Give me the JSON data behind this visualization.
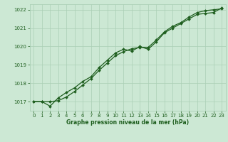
{
  "background_color": "#cce8d4",
  "grid_color": "#aacfb5",
  "line_color": "#1e5e1e",
  "text_color": "#1e5e1e",
  "xlabel": "Graphe pression niveau de la mer (hPa)",
  "ylim": [
    1016.5,
    1022.3
  ],
  "xlim": [
    -0.5,
    23.5
  ],
  "yticks": [
    1017,
    1018,
    1019,
    1020,
    1021,
    1022
  ],
  "xticks": [
    0,
    1,
    2,
    3,
    4,
    5,
    6,
    7,
    8,
    9,
    10,
    11,
    12,
    13,
    14,
    15,
    16,
    17,
    18,
    19,
    20,
    21,
    22,
    23
  ],
  "line1_x": [
    0,
    1,
    2,
    3,
    4,
    5,
    6,
    7,
    8,
    9,
    10,
    11,
    12,
    13,
    14,
    15,
    16,
    17,
    18,
    19,
    20,
    21,
    22,
    23
  ],
  "line1_y": [
    1017.0,
    1017.0,
    1016.75,
    1017.2,
    1017.5,
    1017.75,
    1018.1,
    1018.35,
    1018.85,
    1019.25,
    1019.65,
    1019.85,
    1019.75,
    1020.0,
    1019.85,
    1020.25,
    1020.75,
    1021.0,
    1021.25,
    1021.5,
    1021.75,
    1021.8,
    1021.85,
    1022.1
  ],
  "line2_x": [
    0,
    1,
    2,
    3,
    4,
    5,
    6,
    7,
    8,
    9,
    10,
    11,
    12,
    13,
    14,
    15,
    16,
    17,
    18,
    19,
    20,
    21,
    22,
    23
  ],
  "line2_y": [
    1017.0,
    1017.0,
    1017.0,
    1017.05,
    1017.25,
    1017.55,
    1017.9,
    1018.25,
    1018.7,
    1019.1,
    1019.5,
    1019.72,
    1019.88,
    1019.95,
    1019.95,
    1020.35,
    1020.8,
    1021.1,
    1021.3,
    1021.6,
    1021.85,
    1021.95,
    1022.0,
    1022.05
  ]
}
